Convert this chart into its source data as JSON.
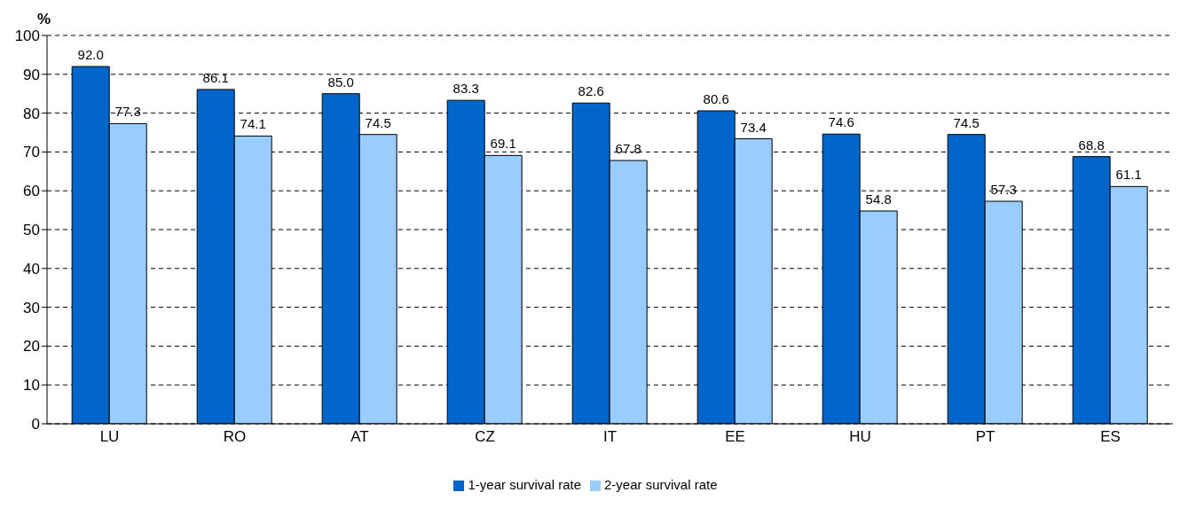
{
  "chart_data": {
    "type": "bar",
    "ylabel": "%",
    "categories": [
      "LU",
      "RO",
      "AT",
      "CZ",
      "IT",
      "EE",
      "HU",
      "PT",
      "ES"
    ],
    "series": [
      {
        "name": "1-year survival rate",
        "color": "#0066cc",
        "values": [
          92.0,
          86.1,
          85.0,
          83.3,
          82.6,
          80.6,
          74.6,
          74.5,
          68.8
        ],
        "value_labels": [
          "92.0",
          "86.1",
          "85.0",
          "83.3",
          "82.6",
          "80.6",
          "74.6",
          "74.5",
          "68.8"
        ]
      },
      {
        "name": "2-year survival rate",
        "color": "#99ccff",
        "values": [
          77.3,
          74.1,
          74.5,
          69.1,
          67.8,
          73.4,
          54.8,
          57.3,
          61.1
        ],
        "value_labels": [
          "77.3",
          "74.1",
          "74.5",
          "69.1",
          "67.8",
          "73.4",
          "54.8",
          "57.3",
          "61.1"
        ]
      }
    ],
    "ylim": [
      0,
      100
    ],
    "yticks": [
      0,
      10,
      20,
      30,
      40,
      50,
      60,
      70,
      80,
      90,
      100
    ],
    "grid": "y",
    "legend": "bottom"
  }
}
